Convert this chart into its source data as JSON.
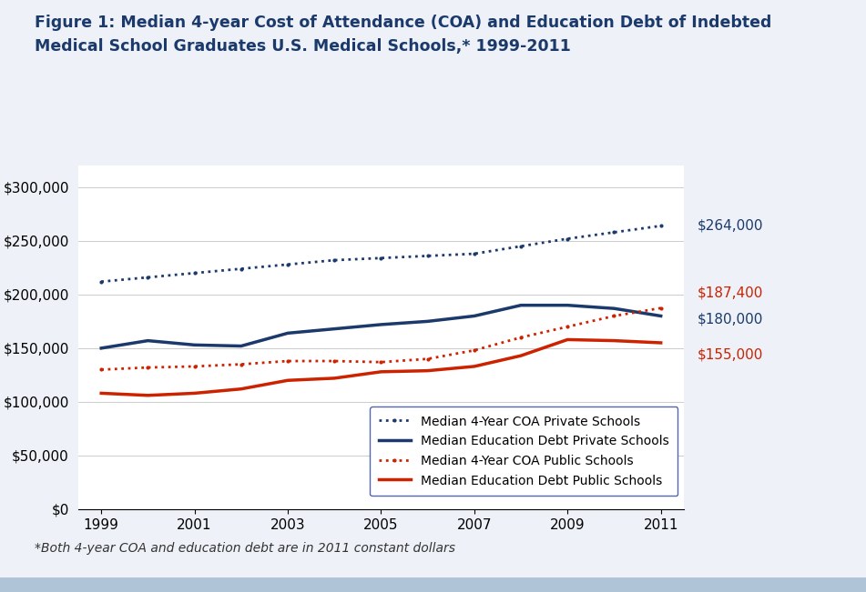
{
  "title_line1": "Figure 1: Median 4-year Cost of Attendance (COA) and Education Debt of Indebted",
  "title_line2": "Medical School Graduates U.S. Medical Schools,* 1999-2011",
  "footnote": "*Both 4-year COA and education debt are in 2011 constant dollars",
  "years": [
    1999,
    2000,
    2001,
    2002,
    2003,
    2004,
    2005,
    2006,
    2007,
    2008,
    2009,
    2010,
    2011
  ],
  "coa_private": [
    212000,
    216000,
    220000,
    224000,
    228000,
    232000,
    234000,
    236000,
    238000,
    245000,
    252000,
    258000,
    264000
  ],
  "debt_private": [
    150000,
    157000,
    153000,
    152000,
    164000,
    168000,
    172000,
    175000,
    180000,
    190000,
    190000,
    187000,
    180000
  ],
  "coa_public": [
    130000,
    132000,
    133000,
    135000,
    138000,
    138000,
    137000,
    140000,
    148000,
    160000,
    170000,
    180000,
    187400
  ],
  "debt_public": [
    108000,
    106000,
    108000,
    112000,
    120000,
    122000,
    128000,
    129000,
    133000,
    143000,
    158000,
    157000,
    155000
  ],
  "end_labels": {
    "coa_private": "$264,000",
    "debt_private": "$180,000",
    "coa_public": "$187,400",
    "debt_public": "$155,000"
  },
  "color_blue": "#1B3A6B",
  "color_red": "#CC2200",
  "color_title": "#1B3A6B",
  "color_annot_blue": "#1B3A6B",
  "color_annot_red": "#CC2200",
  "background_color": "#EEF2F8",
  "plot_bg": "#FFFFFF",
  "ylim": [
    0,
    320000
  ],
  "yticks": [
    0,
    50000,
    100000,
    150000,
    200000,
    250000,
    300000
  ],
  "xticks": [
    1999,
    2001,
    2003,
    2005,
    2007,
    2009,
    2011
  ],
  "legend_labels": [
    "Median 4-Year COA Private Schools",
    "Median Education Debt Private Schools",
    "Median 4-Year COA Public Schools",
    "Median Education Debt Public Schools"
  ],
  "bottom_bar_color": "#B0C4D8"
}
